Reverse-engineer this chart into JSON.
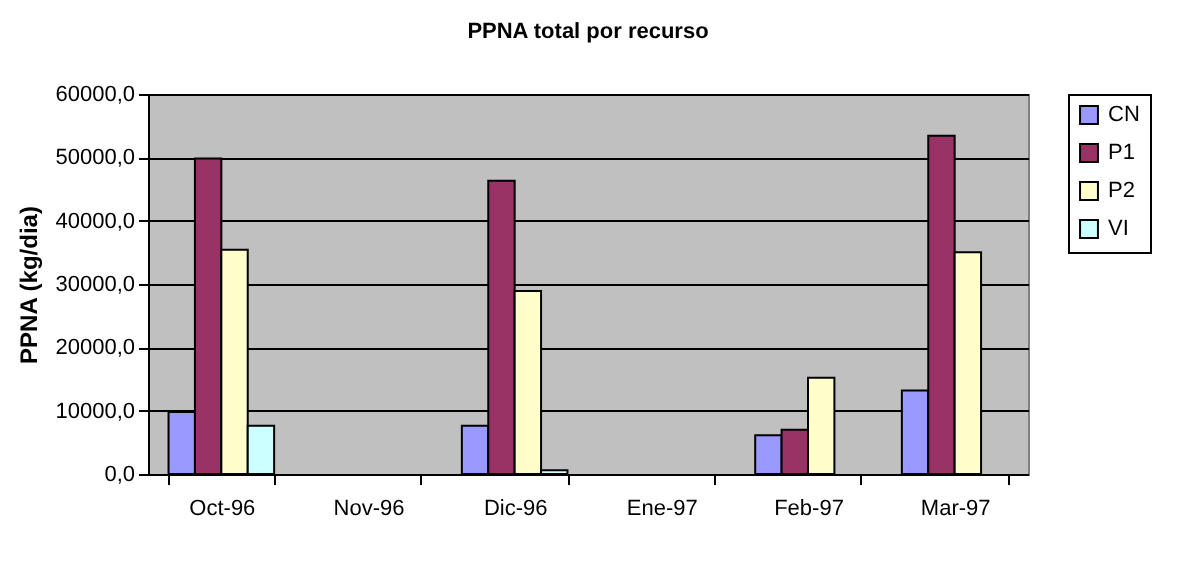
{
  "chart_data": {
    "type": "bar",
    "title": "PPNA total por recurso",
    "ylabel": "PPNA (kg/dia)",
    "categories": [
      "Oct-96",
      "Nov-96",
      "Dic-96",
      "Ene-97",
      "Feb-97",
      "Mar-97"
    ],
    "series": [
      {
        "name": "CN",
        "color": "#9999ff",
        "values": [
          9800,
          null,
          7600,
          null,
          6100,
          13200
        ]
      },
      {
        "name": "P1",
        "color": "#993366",
        "values": [
          49800,
          null,
          46300,
          null,
          7000,
          53400
        ]
      },
      {
        "name": "P2",
        "color": "#ffffcc",
        "values": [
          35400,
          null,
          28900,
          null,
          15200,
          35000
        ]
      },
      {
        "name": "VI",
        "color": "#ccffff",
        "values": [
          7600,
          null,
          600,
          null,
          null,
          null
        ]
      }
    ],
    "ylim": [
      0,
      60000
    ],
    "yticks": [
      {
        "value": 0,
        "label": "0,0"
      },
      {
        "value": 10000,
        "label": "10000,0"
      },
      {
        "value": 20000,
        "label": "20000,0"
      },
      {
        "value": 30000,
        "label": "30000,0"
      },
      {
        "value": 40000,
        "label": "40000,0"
      },
      {
        "value": 50000,
        "label": "50000,0"
      },
      {
        "value": 60000,
        "label": "60000,0"
      }
    ],
    "grid": "y",
    "legend": "right"
  }
}
